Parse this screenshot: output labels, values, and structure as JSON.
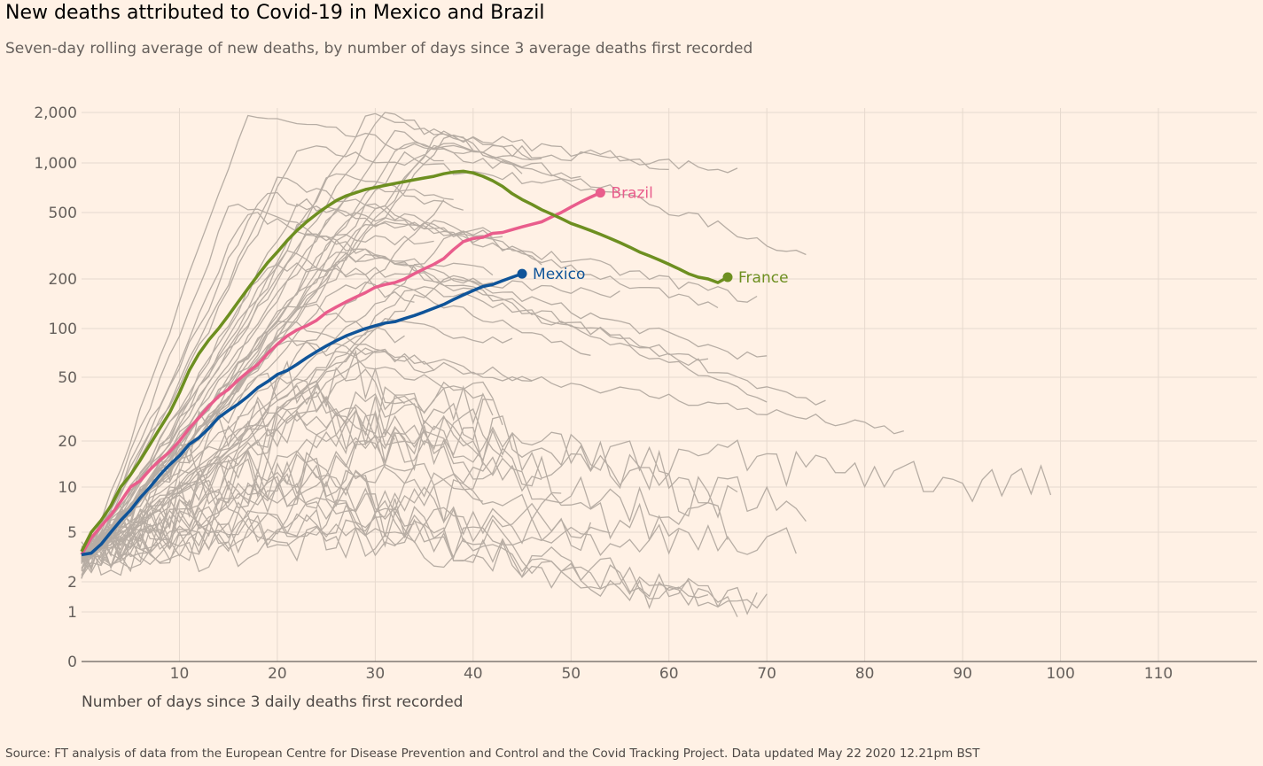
{
  "title": "New deaths attributed to Covid-19 in Mexico and Brazil",
  "subtitle": "Seven-day rolling average of new deaths, by number of days since 3 average deaths first recorded",
  "source": "Source: FT analysis of data from the European Centre for Disease Prevention and Control and the Covid Tracking Project. Data updated May 22 2020 12.21pm BST",
  "chart_data": {
    "type": "line",
    "xlabel": "Number of days since 3 daily deaths first recorded",
    "ylabel": "",
    "y_scale": "log",
    "xlim": [
      0,
      120
    ],
    "ylim": [
      0,
      2000
    ],
    "x_ticks": [
      10,
      20,
      30,
      40,
      50,
      60,
      70,
      80,
      90,
      100,
      110
    ],
    "y_ticks": [
      0,
      1,
      2,
      5,
      10,
      20,
      50,
      100,
      200,
      500,
      1000,
      2000
    ],
    "y_tick_labels": [
      "0",
      "1",
      "2",
      "5",
      "10",
      "20",
      "50",
      "100",
      "200",
      "500",
      "1,000",
      "2,000"
    ],
    "grid": true,
    "highlight_series": [
      {
        "name": "Brazil",
        "color": "#e95d8c",
        "x": [
          0,
          1,
          2,
          3,
          4,
          5,
          6,
          7,
          8,
          9,
          10,
          11,
          12,
          13,
          14,
          15,
          16,
          17,
          18,
          19,
          20,
          21,
          22,
          23,
          24,
          25,
          26,
          27,
          28,
          29,
          30,
          31,
          32,
          33,
          34,
          35,
          36,
          37,
          38,
          39,
          40,
          41,
          42,
          43,
          44,
          45,
          46,
          47,
          48,
          49,
          50,
          51,
          52,
          53
        ],
        "y": [
          3.3,
          4.5,
          5.5,
          6.5,
          8,
          10,
          11,
          13,
          15,
          17,
          20,
          24,
          28,
          33,
          38,
          42,
          48,
          54,
          60,
          70,
          80,
          90,
          98,
          104,
          112,
          125,
          135,
          145,
          155,
          165,
          178,
          185,
          190,
          200,
          215,
          230,
          245,
          265,
          300,
          335,
          350,
          355,
          375,
          380,
          395,
          410,
          425,
          440,
          470,
          500,
          540,
          580,
          620,
          660
        ]
      },
      {
        "name": "Mexico",
        "color": "#0f5499",
        "x": [
          0,
          1,
          2,
          3,
          4,
          5,
          6,
          7,
          8,
          9,
          10,
          11,
          12,
          13,
          14,
          15,
          16,
          17,
          18,
          19,
          20,
          21,
          22,
          23,
          24,
          25,
          26,
          27,
          28,
          29,
          30,
          31,
          32,
          33,
          34,
          35,
          36,
          37,
          38,
          39,
          40,
          41,
          42,
          43,
          44,
          45
        ],
        "y": [
          3.3,
          3.4,
          4,
          5,
          6,
          7,
          8.5,
          10,
          12,
          14,
          16,
          19,
          21,
          24,
          28,
          31,
          34,
          38,
          43,
          47,
          52,
          55,
          60,
          66,
          72,
          78,
          84,
          90,
          95,
          100,
          104,
          108,
          110,
          115,
          120,
          126,
          133,
          140,
          150,
          160,
          170,
          180,
          185,
          195,
          205,
          215
        ]
      },
      {
        "name": "France",
        "color": "#6d8f20",
        "x": [
          0,
          1,
          2,
          3,
          4,
          5,
          6,
          7,
          8,
          9,
          10,
          11,
          12,
          13,
          14,
          15,
          16,
          17,
          18,
          19,
          20,
          21,
          22,
          23,
          24,
          25,
          26,
          27,
          28,
          29,
          30,
          31,
          32,
          33,
          34,
          35,
          36,
          37,
          38,
          39,
          40,
          41,
          42,
          43,
          44,
          45,
          46,
          47,
          48,
          49,
          50,
          51,
          52,
          53,
          54,
          55,
          56,
          57,
          58,
          59,
          60,
          61,
          62,
          63,
          64,
          65,
          66
        ],
        "y": [
          3.5,
          5,
          6,
          7.5,
          10,
          12,
          15,
          19,
          24,
          30,
          40,
          55,
          70,
          85,
          100,
          120,
          145,
          175,
          210,
          250,
          290,
          340,
          390,
          440,
          490,
          540,
          590,
          630,
          660,
          690,
          710,
          730,
          750,
          770,
          790,
          810,
          830,
          860,
          880,
          890,
          870,
          830,
          780,
          720,
          650,
          600,
          560,
          520,
          490,
          460,
          430,
          410,
          390,
          370,
          350,
          330,
          310,
          290,
          275,
          260,
          245,
          230,
          215,
          205,
          200,
          190,
          205
        ]
      }
    ],
    "background_series_color": "#b7ada4"
  }
}
